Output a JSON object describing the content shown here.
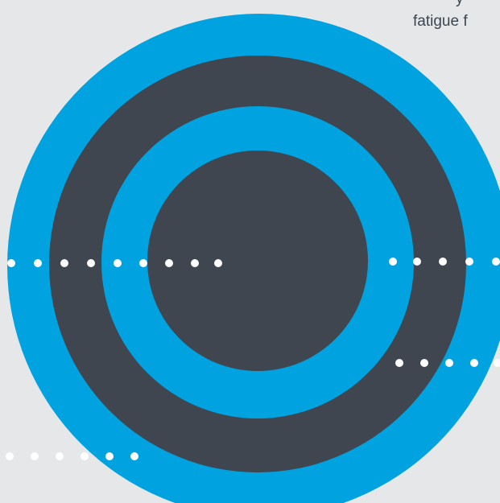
{
  "caption": {
    "line1": "y",
    "line2": "fatigue f"
  },
  "colors": {
    "background": "#e6e7e9",
    "ring_blue": "#00a3e0",
    "ring_dark": "#3f4650",
    "dot": "#ffffff",
    "text": "#3c4650"
  }
}
